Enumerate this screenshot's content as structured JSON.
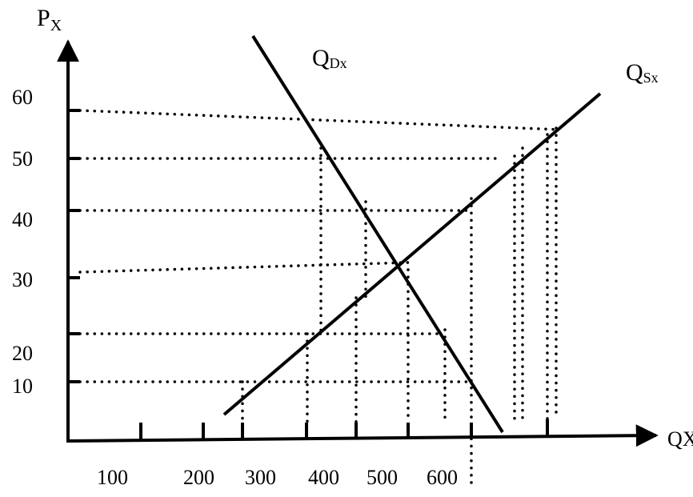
{
  "axes": {
    "y_label_main": "P",
    "y_label_sub": "X",
    "x_label": "QX"
  },
  "curves": {
    "demand_main": "Q",
    "demand_sub": "Dx",
    "supply_main": "Q",
    "supply_sub": "Sx"
  },
  "y_ticks": [
    "60",
    "50",
    "40",
    "30",
    "20",
    "10"
  ],
  "x_ticks": [
    "100",
    "200",
    "300",
    "400",
    "500",
    "600"
  ]
}
